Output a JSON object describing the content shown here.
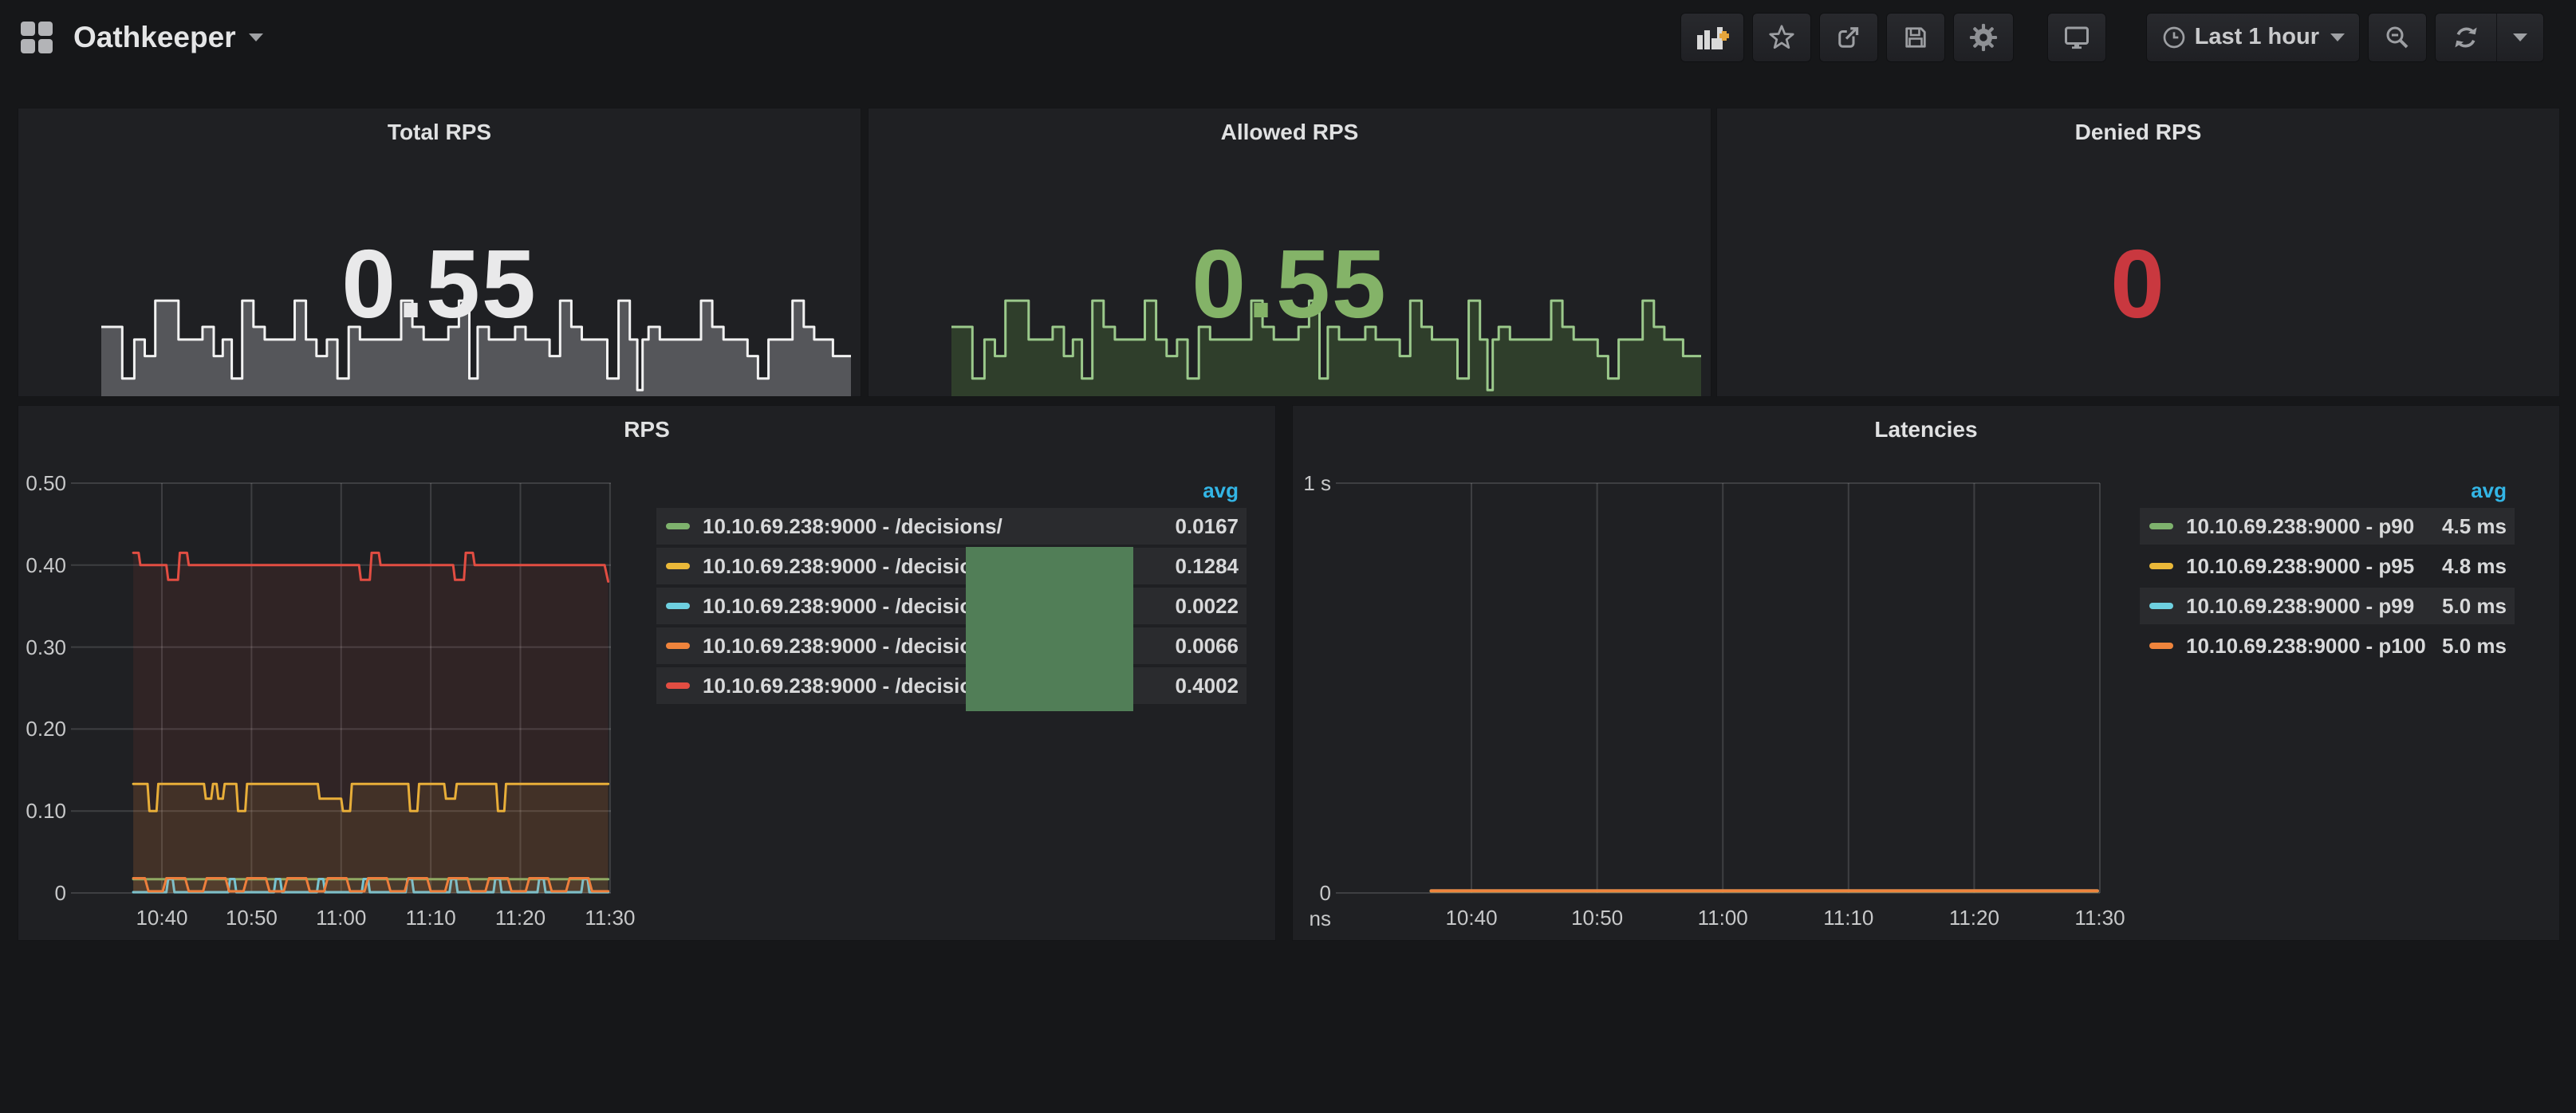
{
  "navbar": {
    "title": "Oathkeeper",
    "timepicker": {
      "label": "Last 1 hour"
    },
    "icons": [
      "grid-logo",
      "add-panel",
      "star",
      "share",
      "save",
      "settings",
      "cycle-view",
      "clock",
      "zoom-out",
      "refresh",
      "dropdown-caret"
    ]
  },
  "colors": {
    "page_bg": "#161719",
    "panel_bg": "#1f2023",
    "grid_line": "rgba(255,255,255,0.14)",
    "axis_text": "#c7c8c9",
    "avg_header": "#33b5e5"
  },
  "stats": [
    {
      "title": "Total RPS",
      "value": "0.55",
      "value_color": "#e9e9ea",
      "spark": {
        "line": "#f2f2f2",
        "fill": "#55565a"
      }
    },
    {
      "title": "Allowed RPS",
      "value": "0.55",
      "value_color": "#84b368",
      "spark": {
        "line": "#9bc98b",
        "fill": "#2f3e2b"
      }
    },
    {
      "title": "Denied RPS",
      "value": "0",
      "value_color": "#c9383f",
      "spark": null
    }
  ],
  "spark_points": [
    [
      0.0,
      0.68
    ],
    [
      0.028,
      0.68
    ],
    [
      0.028,
      0.15
    ],
    [
      0.044,
      0.15
    ],
    [
      0.044,
      0.55
    ],
    [
      0.058,
      0.55
    ],
    [
      0.058,
      0.38
    ],
    [
      0.072,
      0.38
    ],
    [
      0.072,
      0.95
    ],
    [
      0.103,
      0.95
    ],
    [
      0.103,
      0.55
    ],
    [
      0.135,
      0.55
    ],
    [
      0.135,
      0.68
    ],
    [
      0.15,
      0.68
    ],
    [
      0.15,
      0.38
    ],
    [
      0.162,
      0.38
    ],
    [
      0.162,
      0.55
    ],
    [
      0.174,
      0.55
    ],
    [
      0.174,
      0.15
    ],
    [
      0.188,
      0.15
    ],
    [
      0.188,
      0.95
    ],
    [
      0.203,
      0.95
    ],
    [
      0.203,
      0.68
    ],
    [
      0.218,
      0.68
    ],
    [
      0.218,
      0.55
    ],
    [
      0.258,
      0.55
    ],
    [
      0.258,
      0.95
    ],
    [
      0.273,
      0.95
    ],
    [
      0.273,
      0.55
    ],
    [
      0.287,
      0.55
    ],
    [
      0.287,
      0.38
    ],
    [
      0.301,
      0.38
    ],
    [
      0.301,
      0.55
    ],
    [
      0.315,
      0.55
    ],
    [
      0.315,
      0.15
    ],
    [
      0.33,
      0.15
    ],
    [
      0.33,
      0.68
    ],
    [
      0.345,
      0.68
    ],
    [
      0.345,
      0.55
    ],
    [
      0.4,
      0.55
    ],
    [
      0.4,
      0.95
    ],
    [
      0.415,
      0.95
    ],
    [
      0.415,
      0.68
    ],
    [
      0.43,
      0.68
    ],
    [
      0.43,
      0.55
    ],
    [
      0.463,
      0.55
    ],
    [
      0.463,
      0.68
    ],
    [
      0.477,
      0.68
    ],
    [
      0.477,
      0.95
    ],
    [
      0.491,
      0.95
    ],
    [
      0.491,
      0.15
    ],
    [
      0.502,
      0.15
    ],
    [
      0.502,
      0.68
    ],
    [
      0.517,
      0.68
    ],
    [
      0.517,
      0.55
    ],
    [
      0.552,
      0.55
    ],
    [
      0.552,
      0.68
    ],
    [
      0.566,
      0.68
    ],
    [
      0.566,
      0.55
    ],
    [
      0.598,
      0.55
    ],
    [
      0.598,
      0.38
    ],
    [
      0.612,
      0.38
    ],
    [
      0.612,
      0.95
    ],
    [
      0.627,
      0.95
    ],
    [
      0.627,
      0.68
    ],
    [
      0.641,
      0.68
    ],
    [
      0.641,
      0.55
    ],
    [
      0.675,
      0.55
    ],
    [
      0.675,
      0.15
    ],
    [
      0.69,
      0.15
    ],
    [
      0.69,
      0.95
    ],
    [
      0.705,
      0.95
    ],
    [
      0.705,
      0.55
    ],
    [
      0.715,
      0.55
    ],
    [
      0.715,
      0.03
    ],
    [
      0.722,
      0.03
    ],
    [
      0.722,
      0.55
    ],
    [
      0.73,
      0.55
    ],
    [
      0.73,
      0.68
    ],
    [
      0.745,
      0.68
    ],
    [
      0.745,
      0.55
    ],
    [
      0.8,
      0.55
    ],
    [
      0.8,
      0.95
    ],
    [
      0.815,
      0.95
    ],
    [
      0.815,
      0.68
    ],
    [
      0.83,
      0.68
    ],
    [
      0.83,
      0.55
    ],
    [
      0.862,
      0.55
    ],
    [
      0.862,
      0.38
    ],
    [
      0.876,
      0.38
    ],
    [
      0.876,
      0.15
    ],
    [
      0.89,
      0.15
    ],
    [
      0.89,
      0.55
    ],
    [
      0.922,
      0.55
    ],
    [
      0.922,
      0.95
    ],
    [
      0.937,
      0.95
    ],
    [
      0.937,
      0.68
    ],
    [
      0.951,
      0.68
    ],
    [
      0.951,
      0.55
    ],
    [
      0.976,
      0.55
    ],
    [
      0.976,
      0.38
    ],
    [
      1.0,
      0.38
    ]
  ],
  "chart_data": [
    {
      "type": "line",
      "title": "RPS",
      "x_tick_labels": [
        "10:40",
        "10:50",
        "11:00",
        "11:10",
        "11:20",
        "11:30"
      ],
      "x_tick_minutes": [
        8.9,
        18.9,
        28.9,
        38.9,
        48.9,
        58.9
      ],
      "x_range_minutes": [
        0,
        59.0
      ],
      "ylim": [
        0,
        0.5
      ],
      "y_ticks": [
        0,
        0.1,
        0.2,
        0.3,
        0.4,
        0.5
      ],
      "y_tick_labels": [
        "0",
        "0.10",
        "0.20",
        "0.30",
        "0.40",
        "0.50"
      ],
      "legend_header": "avg",
      "legend_position": "right-table",
      "grid": true,
      "tooltip_box_color": "#517e57",
      "series": [
        {
          "name": "10.10.69.238:9000 - /decisions/",
          "color": "#7eb26d",
          "avg": "0.0167",
          "fill_opacity": 0.08,
          "width": 3,
          "points": [
            [
              5.7,
              0.0167
            ],
            [
              58.7,
              0.0167
            ]
          ]
        },
        {
          "name": "10.10.69.238:9000 - /decisions/",
          "color": "#eab839",
          "avg": "0.1284",
          "fill_opacity": 0.1,
          "width": 3,
          "points": [
            [
              5.7,
              0.133
            ],
            [
              7.3,
              0.133
            ],
            [
              7.5,
              0.1
            ],
            [
              8.3,
              0.1
            ],
            [
              8.5,
              0.133
            ],
            [
              13.6,
              0.133
            ],
            [
              13.8,
              0.115
            ],
            [
              14.4,
              0.115
            ],
            [
              14.6,
              0.133
            ],
            [
              15.0,
              0.133
            ],
            [
              15.2,
              0.115
            ],
            [
              15.7,
              0.115
            ],
            [
              15.9,
              0.133
            ],
            [
              17.2,
              0.133
            ],
            [
              17.4,
              0.1
            ],
            [
              18.2,
              0.1
            ],
            [
              18.4,
              0.133
            ],
            [
              26.3,
              0.133
            ],
            [
              26.5,
              0.115
            ],
            [
              28.9,
              0.115
            ],
            [
              29.1,
              0.1
            ],
            [
              29.9,
              0.1
            ],
            [
              30.1,
              0.133
            ],
            [
              36.4,
              0.133
            ],
            [
              36.6,
              0.1
            ],
            [
              37.4,
              0.1
            ],
            [
              37.6,
              0.133
            ],
            [
              40.4,
              0.133
            ],
            [
              40.6,
              0.115
            ],
            [
              41.6,
              0.115
            ],
            [
              41.8,
              0.133
            ],
            [
              46.2,
              0.133
            ],
            [
              46.4,
              0.1
            ],
            [
              47.1,
              0.1
            ],
            [
              47.3,
              0.133
            ],
            [
              58.7,
              0.133
            ]
          ]
        },
        {
          "name": "10.10.69.238:9000 - /decisions/",
          "color": "#6ed0e0",
          "avg": "0.0022",
          "fill_opacity": 0.06,
          "width": 3,
          "points": [
            [
              5.7,
              0.001
            ],
            [
              9.4,
              0.001
            ],
            [
              9.6,
              0.017
            ],
            [
              10.1,
              0.017
            ],
            [
              10.3,
              0.001
            ],
            [
              16.3,
              0.001
            ],
            [
              16.5,
              0.017
            ],
            [
              17.0,
              0.017
            ],
            [
              17.2,
              0.001
            ],
            [
              21.4,
              0.001
            ],
            [
              21.6,
              0.017
            ],
            [
              22.1,
              0.017
            ],
            [
              22.3,
              0.001
            ],
            [
              26.2,
              0.001
            ],
            [
              26.4,
              0.017
            ],
            [
              26.9,
              0.017
            ],
            [
              27.1,
              0.001
            ],
            [
              31.2,
              0.001
            ],
            [
              31.4,
              0.017
            ],
            [
              31.9,
              0.017
            ],
            [
              32.1,
              0.001
            ],
            [
              36.1,
              0.001
            ],
            [
              36.3,
              0.017
            ],
            [
              36.8,
              0.017
            ],
            [
              37.0,
              0.001
            ],
            [
              41.0,
              0.001
            ],
            [
              41.2,
              0.017
            ],
            [
              41.7,
              0.017
            ],
            [
              41.9,
              0.001
            ],
            [
              45.9,
              0.001
            ],
            [
              46.1,
              0.017
            ],
            [
              46.6,
              0.017
            ],
            [
              46.8,
              0.001
            ],
            [
              50.8,
              0.001
            ],
            [
              51.0,
              0.017
            ],
            [
              51.5,
              0.017
            ],
            [
              51.7,
              0.001
            ],
            [
              55.7,
              0.001
            ],
            [
              55.9,
              0.017
            ],
            [
              56.4,
              0.017
            ],
            [
              56.6,
              0.001
            ],
            [
              58.7,
              0.001
            ]
          ]
        },
        {
          "name": "10.10.69.238:9000 - /decisions/",
          "color": "#ef843c",
          "avg": "0.0066",
          "fill_opacity": 0.07,
          "width": 3,
          "points": [
            [
              5.7,
              0.018
            ],
            [
              7.0,
              0.018
            ],
            [
              7.4,
              0.002
            ],
            [
              9.0,
              0.002
            ],
            [
              9.4,
              0.018
            ],
            [
              11.5,
              0.018
            ],
            [
              11.9,
              0.002
            ],
            [
              13.5,
              0.002
            ],
            [
              13.9,
              0.018
            ],
            [
              16.0,
              0.018
            ],
            [
              16.4,
              0.002
            ],
            [
              18.0,
              0.002
            ],
            [
              18.4,
              0.018
            ],
            [
              20.5,
              0.018
            ],
            [
              20.9,
              0.002
            ],
            [
              22.5,
              0.002
            ],
            [
              22.9,
              0.018
            ],
            [
              25.0,
              0.018
            ],
            [
              25.4,
              0.002
            ],
            [
              27.0,
              0.002
            ],
            [
              27.4,
              0.018
            ],
            [
              29.5,
              0.018
            ],
            [
              29.9,
              0.002
            ],
            [
              31.5,
              0.002
            ],
            [
              31.9,
              0.018
            ],
            [
              34.0,
              0.018
            ],
            [
              34.4,
              0.002
            ],
            [
              36.0,
              0.002
            ],
            [
              36.4,
              0.018
            ],
            [
              38.5,
              0.018
            ],
            [
              38.9,
              0.002
            ],
            [
              40.5,
              0.002
            ],
            [
              40.9,
              0.018
            ],
            [
              43.0,
              0.018
            ],
            [
              43.4,
              0.002
            ],
            [
              45.0,
              0.002
            ],
            [
              45.4,
              0.018
            ],
            [
              47.5,
              0.018
            ],
            [
              47.9,
              0.002
            ],
            [
              49.5,
              0.002
            ],
            [
              49.9,
              0.018
            ],
            [
              52.0,
              0.018
            ],
            [
              52.4,
              0.002
            ],
            [
              54.0,
              0.002
            ],
            [
              54.4,
              0.018
            ],
            [
              56.5,
              0.018
            ],
            [
              56.9,
              0.002
            ],
            [
              58.7,
              0.002
            ]
          ]
        },
        {
          "name": "10.10.69.238:9000 - /decisions/",
          "color": "#e24d42",
          "avg": "0.4002",
          "fill_opacity": 0.09,
          "width": 3,
          "points": [
            [
              5.7,
              0.415
            ],
            [
              6.3,
              0.415
            ],
            [
              6.5,
              0.4
            ],
            [
              9.4,
              0.4
            ],
            [
              9.6,
              0.382
            ],
            [
              10.7,
              0.382
            ],
            [
              10.9,
              0.415
            ],
            [
              11.7,
              0.415
            ],
            [
              11.9,
              0.4
            ],
            [
              30.9,
              0.4
            ],
            [
              31.1,
              0.382
            ],
            [
              32.1,
              0.382
            ],
            [
              32.3,
              0.415
            ],
            [
              33.1,
              0.415
            ],
            [
              33.3,
              0.4
            ],
            [
              41.4,
              0.4
            ],
            [
              41.6,
              0.382
            ],
            [
              42.6,
              0.382
            ],
            [
              42.8,
              0.415
            ],
            [
              43.6,
              0.415
            ],
            [
              43.8,
              0.4
            ],
            [
              58.3,
              0.4
            ],
            [
              58.7,
              0.38
            ]
          ]
        }
      ]
    },
    {
      "type": "line",
      "title": "Latencies",
      "x_tick_labels": [
        "10:40",
        "10:50",
        "11:00",
        "11:10",
        "11:20",
        "11:30"
      ],
      "x_tick_minutes": [
        8.9,
        18.9,
        28.9,
        38.9,
        48.9,
        58.9
      ],
      "x_range_minutes": [
        -1.0,
        58.9
      ],
      "ylim": [
        0,
        1
      ],
      "y_ticks": [
        0,
        1
      ],
      "y_tick_labels": [
        "0 ns",
        "1 s"
      ],
      "legend_header": "avg",
      "legend_position": "right-table",
      "grid": true,
      "series": [
        {
          "name": "10.10.69.238:9000 - p90",
          "color": "#7eb26d",
          "avg": "4.5 ms",
          "fill_opacity": 0,
          "width": 4,
          "points": [
            [
              5.7,
              0.0045
            ],
            [
              58.7,
              0.0045
            ]
          ]
        },
        {
          "name": "10.10.69.238:9000 - p95",
          "color": "#eab839",
          "avg": "4.8 ms",
          "fill_opacity": 0,
          "width": 4,
          "points": [
            [
              5.7,
              0.0048
            ],
            [
              58.7,
              0.0048
            ]
          ]
        },
        {
          "name": "10.10.69.238:9000 - p99",
          "color": "#6ed0e0",
          "avg": "5.0 ms",
          "fill_opacity": 0,
          "width": 4,
          "points": [
            [
              5.7,
              0.005
            ],
            [
              58.7,
              0.005
            ]
          ]
        },
        {
          "name": "10.10.69.238:9000 - p100",
          "color": "#ef843c",
          "avg": "5.0 ms",
          "fill_opacity": 0,
          "width": 4,
          "points": [
            [
              5.7,
              0.005
            ],
            [
              58.7,
              0.005
            ]
          ]
        }
      ]
    }
  ]
}
